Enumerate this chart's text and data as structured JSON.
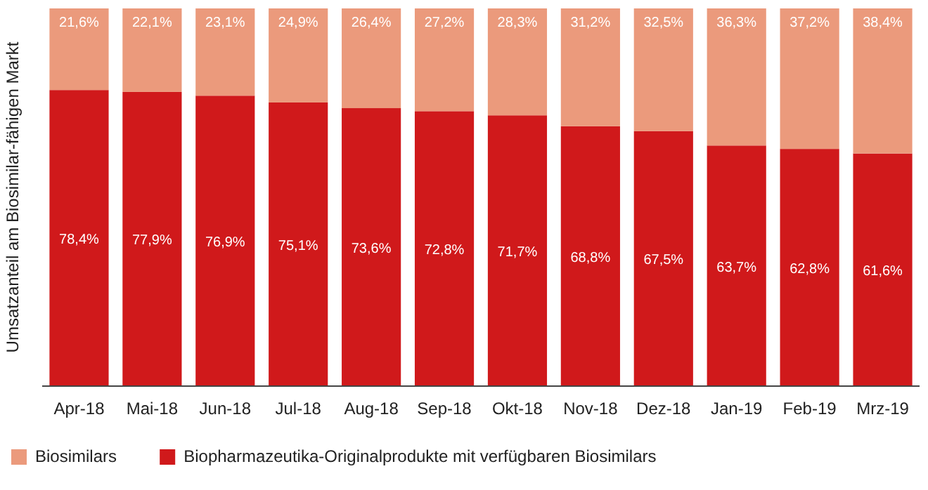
{
  "chart_data": {
    "type": "bar",
    "stacked": true,
    "ylabel": "Umsatzanteil am Biosimilar-fähigen Markt",
    "legend": "bottom",
    "ylim": [
      0,
      100
    ],
    "tick_labels": "x",
    "categories": [
      "Apr-18",
      "Mai-18",
      "Jun-18",
      "Jul-18",
      "Aug-18",
      "Sep-18",
      "Okt-18",
      "Nov-18",
      "Dez-18",
      "Jan-19",
      "Feb-19",
      "Mrz-19"
    ],
    "series": [
      {
        "name": "Biopharmazeutika-Originalprodukte mit verfügbaren Biosimilars",
        "color": "#d0191b",
        "values": [
          78.4,
          77.9,
          76.9,
          75.1,
          73.6,
          72.8,
          71.7,
          68.8,
          67.5,
          63.7,
          62.8,
          61.6
        ],
        "value_labels": [
          "78,4%",
          "77,9%",
          "76,9%",
          "75,1%",
          "73,6%",
          "72,8%",
          "71,7%",
          "68,8%",
          "67,5%",
          "63,7%",
          "62,8%",
          "61,6%"
        ]
      },
      {
        "name": "Biosimilars",
        "color": "#eb9a7c",
        "values": [
          21.6,
          22.1,
          23.1,
          24.9,
          26.4,
          27.2,
          28.3,
          31.2,
          32.5,
          36.3,
          37.2,
          38.4
        ],
        "value_labels": [
          "21,6%",
          "22,1%",
          "23,1%",
          "24,9%",
          "26,4%",
          "27,2%",
          "28,3%",
          "31,2%",
          "32,5%",
          "36,3%",
          "37,2%",
          "38,4%"
        ]
      }
    ]
  }
}
